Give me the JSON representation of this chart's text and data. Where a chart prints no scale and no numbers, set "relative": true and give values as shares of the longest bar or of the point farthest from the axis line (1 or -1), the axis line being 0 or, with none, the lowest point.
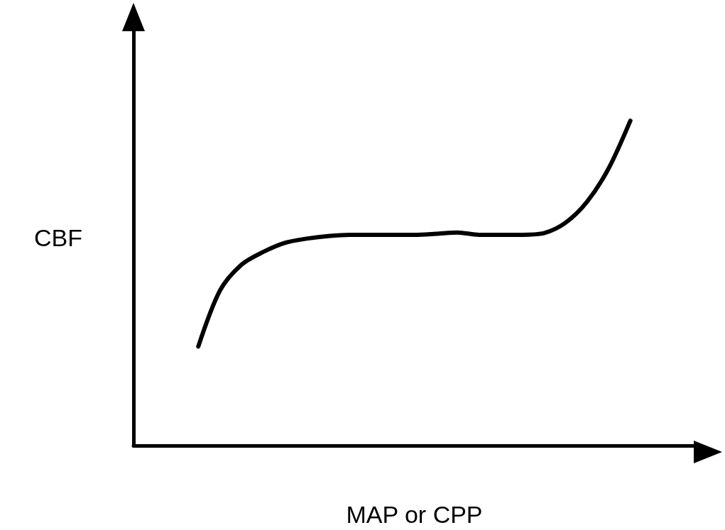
{
  "chart_data": {
    "type": "line",
    "xlabel": "MAP or CPP",
    "ylabel": "CBF",
    "relative": true,
    "color": "#000000",
    "marker": "none",
    "grid": false,
    "categories": [
      null,
      null,
      null,
      null,
      null,
      null,
      null,
      null,
      null,
      null,
      null,
      null,
      null,
      null,
      null,
      null,
      null,
      null,
      null,
      null,
      null,
      null,
      null,
      null,
      null,
      null,
      null
    ],
    "values": [
      null,
      null,
      null,
      0.305,
      0.477,
      0.557,
      0.596,
      0.624,
      0.637,
      0.645,
      0.649,
      0.649,
      0.649,
      0.649,
      0.652,
      0.656,
      0.649,
      0.649,
      0.649,
      0.654,
      0.686,
      0.751,
      0.854,
      1,
      null,
      null,
      null
    ]
  }
}
